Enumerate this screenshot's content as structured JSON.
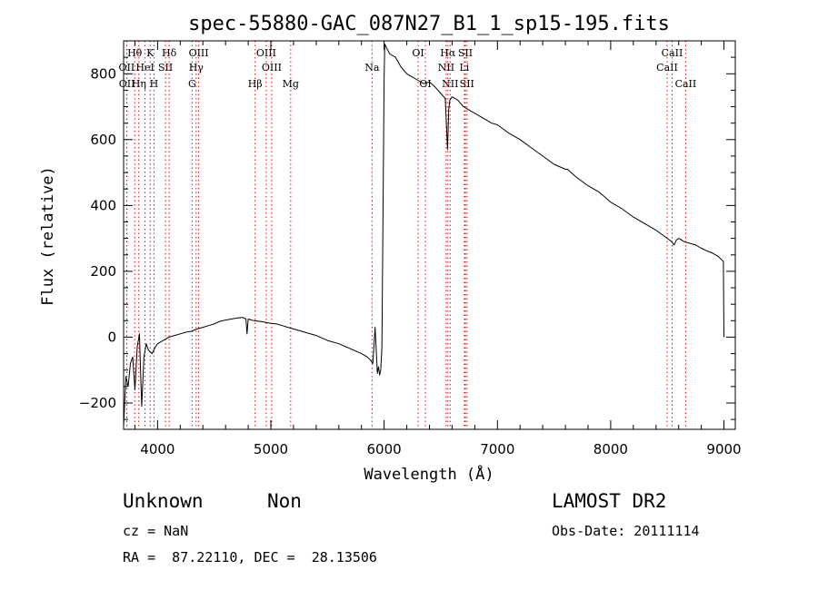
{
  "chart_data": {
    "type": "line",
    "title": "spec-55880-GAC_087N27_B1_1_sp15-195.fits",
    "xlabel": "Wavelength (Å)",
    "ylabel": "Flux (relative)",
    "xlim": [
      3700,
      9100
    ],
    "ylim": [
      -280,
      900
    ],
    "xticks": [
      4000,
      5000,
      6000,
      7000,
      8000,
      9000
    ],
    "yticks": [
      -200,
      0,
      200,
      400,
      600,
      800
    ],
    "grid": false,
    "colors": {
      "spectrum": "#000000",
      "line_markers": "#ff0000",
      "axes": "#000000"
    },
    "series": [
      {
        "x": [
          3700,
          3720,
          3740,
          3760,
          3780,
          3800,
          3820,
          3840,
          3860,
          3880,
          3900,
          3920,
          3950,
          3980,
          4000,
          4050,
          4100,
          4150,
          4200,
          4250,
          4300,
          4350,
          4400,
          4450,
          4500,
          4550,
          4600,
          4650,
          4700,
          4750,
          4780,
          4790,
          4800,
          4850,
          4900,
          4950,
          5000,
          5050,
          5100,
          5150,
          5200,
          5300,
          5400,
          5500,
          5600,
          5700,
          5800,
          5850,
          5880,
          5900,
          5920,
          5940,
          5950,
          5960,
          5970,
          5980,
          6000,
          6005,
          6020,
          6050,
          6100,
          6150,
          6200,
          6250,
          6300,
          6350,
          6400,
          6450,
          6500,
          6540,
          6560,
          6570,
          6580,
          6600,
          6650,
          6700,
          6750,
          6800,
          6850,
          6900,
          6950,
          7000,
          7100,
          7200,
          7300,
          7400,
          7500,
          7600,
          7620,
          7650,
          7700,
          7800,
          7900,
          8000,
          8100,
          8200,
          8300,
          8400,
          8500,
          8540,
          8560,
          8580,
          8600,
          8650,
          8700,
          8750,
          8800,
          8850,
          8900,
          8950,
          8980,
          8995,
          9000
        ],
        "y": [
          -270,
          -120,
          -150,
          -80,
          -60,
          -160,
          -30,
          10,
          -210,
          -60,
          -20,
          -40,
          -50,
          -30,
          -20,
          -10,
          0,
          5,
          10,
          15,
          18,
          25,
          30,
          35,
          40,
          48,
          52,
          55,
          58,
          60,
          55,
          10,
          55,
          50,
          48,
          45,
          42,
          40,
          35,
          30,
          25,
          15,
          5,
          -10,
          -20,
          -35,
          -50,
          -60,
          -70,
          -80,
          30,
          -110,
          -90,
          -115,
          -100,
          -30,
          780,
          890,
          880,
          860,
          850,
          820,
          800,
          790,
          780,
          770,
          775,
          760,
          740,
          725,
          570,
          690,
          720,
          730,
          720,
          700,
          690,
          680,
          670,
          660,
          650,
          645,
          620,
          600,
          575,
          550,
          525,
          510,
          510,
          500,
          485,
          460,
          440,
          410,
          390,
          365,
          345,
          325,
          300,
          290,
          280,
          295,
          300,
          290,
          285,
          280,
          270,
          262,
          255,
          245,
          235,
          230,
          0
        ]
      }
    ],
    "line_labels": [
      {
        "text": "Hθ",
        "row": 0,
        "wave": 3798
      },
      {
        "text": "K",
        "row": 0,
        "wave": 3934
      },
      {
        "text": "Hδ",
        "row": 0,
        "wave": 4102
      },
      {
        "text": "OIII",
        "row": 0,
        "wave": 4363
      },
      {
        "text": "OIII",
        "row": 0,
        "wave": 4959
      },
      {
        "text": "OI",
        "row": 0,
        "wave": 6300
      },
      {
        "text": "Hα",
        "row": 0,
        "wave": 6563
      },
      {
        "text": "SII",
        "row": 0,
        "wave": 6717
      },
      {
        "text": "CaII",
        "row": 0,
        "wave": 8542
      },
      {
        "text": "OII",
        "row": 1,
        "wave": 3727
      },
      {
        "text": "HeI",
        "row": 1,
        "wave": 3889
      },
      {
        "text": "SII",
        "row": 1,
        "wave": 4070
      },
      {
        "text": "Hγ",
        "row": 1,
        "wave": 4340
      },
      {
        "text": "OIII",
        "row": 1,
        "wave": 5007
      },
      {
        "text": "Na",
        "row": 1,
        "wave": 5893
      },
      {
        "text": "NII",
        "row": 1,
        "wave": 6548
      },
      {
        "text": "Li",
        "row": 1,
        "wave": 6708
      },
      {
        "text": "CaII",
        "row": 1,
        "wave": 8498
      },
      {
        "text": "OII",
        "row": 2,
        "wave": 3729
      },
      {
        "text": "Hη",
        "row": 2,
        "wave": 3835
      },
      {
        "text": "H",
        "row": 2,
        "wave": 3968
      },
      {
        "text": "G",
        "row": 2,
        "wave": 4305
      },
      {
        "text": "Hβ",
        "row": 2,
        "wave": 4861
      },
      {
        "text": "Mg",
        "row": 2,
        "wave": 5175
      },
      {
        "text": "OI",
        "row": 2,
        "wave": 6364
      },
      {
        "text": "NII",
        "row": 2,
        "wave": 6583
      },
      {
        "text": "SII",
        "row": 2,
        "wave": 6731
      },
      {
        "text": "CaII",
        "row": 2,
        "wave": 8662
      }
    ],
    "marker_lines": [
      3727,
      3729,
      3798,
      3835,
      3889,
      3934,
      3968,
      4070,
      4102,
      4305,
      4340,
      4363,
      4861,
      4959,
      5007,
      5175,
      5893,
      6300,
      6364,
      6548,
      6563,
      6583,
      6708,
      6717,
      6731,
      8498,
      8542,
      8662
    ]
  },
  "info": {
    "class": "Unknown",
    "subclass": "Non",
    "survey": "LAMOST DR2",
    "cz": "cz = NaN",
    "obs_date": "Obs-Date: 20111114",
    "coords": "RA =  87.22110, DEC =  28.13506"
  }
}
